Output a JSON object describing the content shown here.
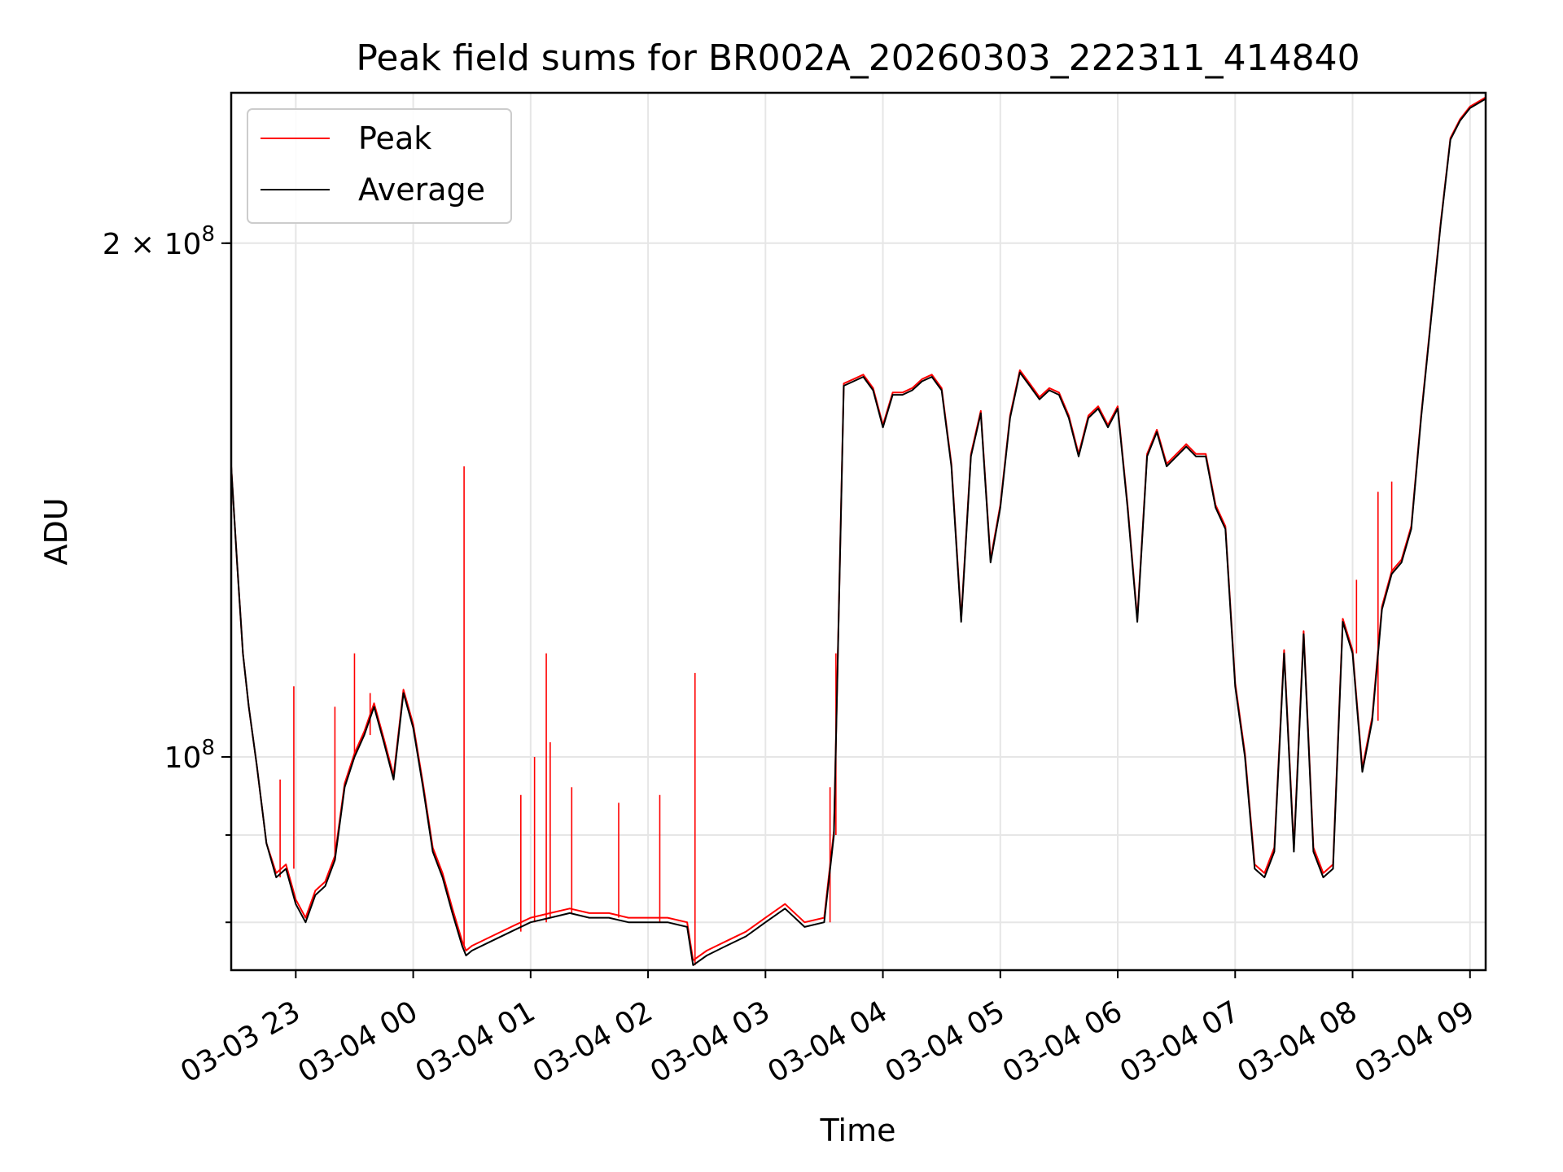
{
  "chart_data": {
    "type": "line",
    "title": "Peak field sums for BR002A_20260303_222311_414840",
    "xlabel": "Time",
    "ylabel": "ADU",
    "yscale": "log",
    "ylim": [
      75000000,
      245000000
    ],
    "xlim": [
      "2026-03-03 22:27",
      "2026-03-04 09:08"
    ],
    "grid": true,
    "legend_position": "upper-left",
    "x_ticks": [
      "03-03 23",
      "03-04 00",
      "03-04 01",
      "03-04 02",
      "03-04 03",
      "03-04 04",
      "03-04 05",
      "03-04 06",
      "03-04 07",
      "03-04 08",
      "03-04 09"
    ],
    "y_ticks": [
      {
        "value": 100000000,
        "mantissa": "",
        "base": "10",
        "exp": "8"
      },
      {
        "value": 200000000,
        "mantissa": "2 × ",
        "base": "10",
        "exp": "8"
      }
    ],
    "series_colors": {
      "Peak": "#ff0000",
      "Average": "#000000"
    },
    "x": [
      "2026-03-03 22:27",
      "2026-03-03 22:30",
      "2026-03-03 22:33",
      "2026-03-03 22:36",
      "2026-03-03 22:40",
      "2026-03-03 22:45",
      "2026-03-03 22:50",
      "2026-03-03 22:55",
      "2026-03-03 23:00",
      "2026-03-03 23:05",
      "2026-03-03 23:10",
      "2026-03-03 23:15",
      "2026-03-03 23:20",
      "2026-03-03 23:25",
      "2026-03-03 23:30",
      "2026-03-03 23:35",
      "2026-03-03 23:40",
      "2026-03-03 23:45",
      "2026-03-03 23:50",
      "2026-03-03 23:55",
      "2026-03-04 00:00",
      "2026-03-04 00:05",
      "2026-03-04 00:10",
      "2026-03-04 00:15",
      "2026-03-04 00:20",
      "2026-03-04 00:25",
      "2026-03-04 00:27",
      "2026-03-04 00:30",
      "2026-03-04 00:40",
      "2026-03-04 00:50",
      "2026-03-04 01:00",
      "2026-03-04 01:10",
      "2026-03-04 01:20",
      "2026-03-04 01:30",
      "2026-03-04 01:40",
      "2026-03-04 01:50",
      "2026-03-04 02:00",
      "2026-03-04 02:10",
      "2026-03-04 02:20",
      "2026-03-04 02:23",
      "2026-03-04 02:30",
      "2026-03-04 02:40",
      "2026-03-04 02:50",
      "2026-03-04 03:00",
      "2026-03-04 03:10",
      "2026-03-04 03:20",
      "2026-03-04 03:30",
      "2026-03-04 03:35",
      "2026-03-04 03:40",
      "2026-03-04 03:45",
      "2026-03-04 03:50",
      "2026-03-04 03:55",
      "2026-03-04 04:00",
      "2026-03-04 04:05",
      "2026-03-04 04:10",
      "2026-03-04 04:15",
      "2026-03-04 04:20",
      "2026-03-04 04:25",
      "2026-03-04 04:30",
      "2026-03-04 04:35",
      "2026-03-04 04:40",
      "2026-03-04 04:45",
      "2026-03-04 04:50",
      "2026-03-04 04:55",
      "2026-03-04 05:00",
      "2026-03-04 05:05",
      "2026-03-04 05:10",
      "2026-03-04 05:15",
      "2026-03-04 05:20",
      "2026-03-04 05:25",
      "2026-03-04 05:30",
      "2026-03-04 05:35",
      "2026-03-04 05:40",
      "2026-03-04 05:45",
      "2026-03-04 05:50",
      "2026-03-04 05:55",
      "2026-03-04 06:00",
      "2026-03-04 06:05",
      "2026-03-04 06:10",
      "2026-03-04 06:15",
      "2026-03-04 06:20",
      "2026-03-04 06:25",
      "2026-03-04 06:30",
      "2026-03-04 06:35",
      "2026-03-04 06:40",
      "2026-03-04 06:45",
      "2026-03-04 06:50",
      "2026-03-04 06:55",
      "2026-03-04 07:00",
      "2026-03-04 07:05",
      "2026-03-04 07:10",
      "2026-03-04 07:15",
      "2026-03-04 07:20",
      "2026-03-04 07:25",
      "2026-03-04 07:30",
      "2026-03-04 07:35",
      "2026-03-04 07:40",
      "2026-03-04 07:45",
      "2026-03-04 07:50",
      "2026-03-04 07:55",
      "2026-03-04 08:00",
      "2026-03-04 08:05",
      "2026-03-04 08:10",
      "2026-03-04 08:15",
      "2026-03-04 08:20",
      "2026-03-04 08:25",
      "2026-03-04 08:30",
      "2026-03-04 08:35",
      "2026-03-04 08:40",
      "2026-03-04 08:45",
      "2026-03-04 08:50",
      "2026-03-04 08:55",
      "2026-03-04 09:00",
      "2026-03-04 09:08"
    ],
    "series": [
      {
        "name": "Average",
        "values": [
          148000000,
          130000000,
          115000000,
          107000000,
          99000000,
          89000000,
          85000000,
          86000000,
          82000000,
          80000000,
          83000000,
          84000000,
          87000000,
          96000000,
          100000000,
          103000000,
          107000000,
          102000000,
          97000000,
          109000000,
          104000000,
          96000000,
          88000000,
          85000000,
          81000000,
          77500000,
          76500000,
          77000000,
          78000000,
          79000000,
          80000000,
          80500000,
          81000000,
          80500000,
          80500000,
          80000000,
          80000000,
          80000000,
          79500000,
          75500000,
          76500000,
          77500000,
          78500000,
          80000000,
          81500000,
          79500000,
          80000000,
          90000000,
          165000000,
          166000000,
          167000000,
          164000000,
          156000000,
          163000000,
          163000000,
          164000000,
          166000000,
          167000000,
          164000000,
          148000000,
          120000000,
          150000000,
          159000000,
          130000000,
          140000000,
          158000000,
          168000000,
          165000000,
          162000000,
          164000000,
          163000000,
          158000000,
          150000000,
          158000000,
          160000000,
          156000000,
          160000000,
          140000000,
          120000000,
          150000000,
          155000000,
          148000000,
          150000000,
          152000000,
          150000000,
          150000000,
          140000000,
          136000000,
          110000000,
          100000000,
          86000000,
          85000000,
          88000000,
          115000000,
          88000000,
          118000000,
          88000000,
          85000000,
          86000000,
          120000000,
          115000000,
          98000000,
          105000000,
          122000000,
          128000000,
          130000000,
          136000000,
          158000000,
          180000000,
          205000000,
          230000000,
          236000000,
          240000000,
          243000000
        ],
        "x_index": "shared"
      },
      {
        "name": "Peak",
        "note_x_index": "shared",
        "values": [
          148000000,
          130000000,
          115000000,
          107000000,
          99000000,
          89000000,
          85500000,
          86500000,
          82500000,
          80500000,
          83500000,
          84500000,
          87500000,
          96500000,
          100500000,
          103500000,
          107500000,
          102500000,
          97500000,
          109500000,
          104500000,
          96500000,
          88500000,
          85500000,
          81500000,
          78000000,
          77000000,
          77500000,
          78500000,
          79500000,
          80500000,
          81000000,
          81500000,
          81000000,
          81000000,
          80500000,
          80500000,
          80500000,
          80000000,
          76000000,
          77000000,
          78000000,
          79000000,
          80500000,
          82000000,
          80000000,
          80500000,
          90500000,
          165500000,
          166500000,
          167500000,
          164500000,
          156500000,
          163500000,
          163500000,
          164500000,
          166500000,
          167500000,
          164500000,
          148500000,
          120500000,
          150500000,
          159500000,
          130500000,
          140500000,
          158500000,
          168500000,
          165500000,
          162500000,
          164500000,
          163500000,
          158500000,
          150500000,
          158500000,
          160500000,
          156500000,
          160500000,
          140500000,
          120500000,
          150500000,
          155500000,
          148500000,
          150500000,
          152500000,
          150500000,
          150500000,
          140500000,
          136500000,
          110500000,
          100500000,
          86500000,
          85500000,
          88500000,
          115500000,
          88500000,
          118500000,
          88500000,
          85500000,
          86500000,
          120500000,
          115500000,
          98500000,
          105500000,
          122500000,
          128500000,
          130500000,
          136500000,
          158500000,
          180500000,
          205500000,
          230500000,
          236500000,
          240500000,
          243500000
        ],
        "spikes": [
          {
            "x": "2026-03-03 22:52",
            "value": 97000000
          },
          {
            "x": "2026-03-03 22:59",
            "value": 110000000
          },
          {
            "x": "2026-03-03 23:20",
            "value": 107000000
          },
          {
            "x": "2026-03-03 23:30",
            "value": 115000000
          },
          {
            "x": "2026-03-03 23:38",
            "value": 109000000
          },
          {
            "x": "2026-03-04 00:26",
            "value": 148000000
          },
          {
            "x": "2026-03-04 00:55",
            "value": 95000000
          },
          {
            "x": "2026-03-04 01:02",
            "value": 100000000
          },
          {
            "x": "2026-03-04 01:08",
            "value": 115000000
          },
          {
            "x": "2026-03-04 01:10",
            "value": 102000000
          },
          {
            "x": "2026-03-04 01:21",
            "value": 96000000
          },
          {
            "x": "2026-03-04 01:45",
            "value": 94000000
          },
          {
            "x": "2026-03-04 02:06",
            "value": 95000000
          },
          {
            "x": "2026-03-04 02:24",
            "value": 112000000
          },
          {
            "x": "2026-03-04 03:33",
            "value": 96000000
          },
          {
            "x": "2026-03-04 03:36",
            "value": 115000000
          },
          {
            "x": "2026-03-04 08:02",
            "value": 127000000
          },
          {
            "x": "2026-03-04 08:13",
            "value": 143000000
          },
          {
            "x": "2026-03-04 08:20",
            "value": 145000000
          }
        ]
      }
    ]
  }
}
